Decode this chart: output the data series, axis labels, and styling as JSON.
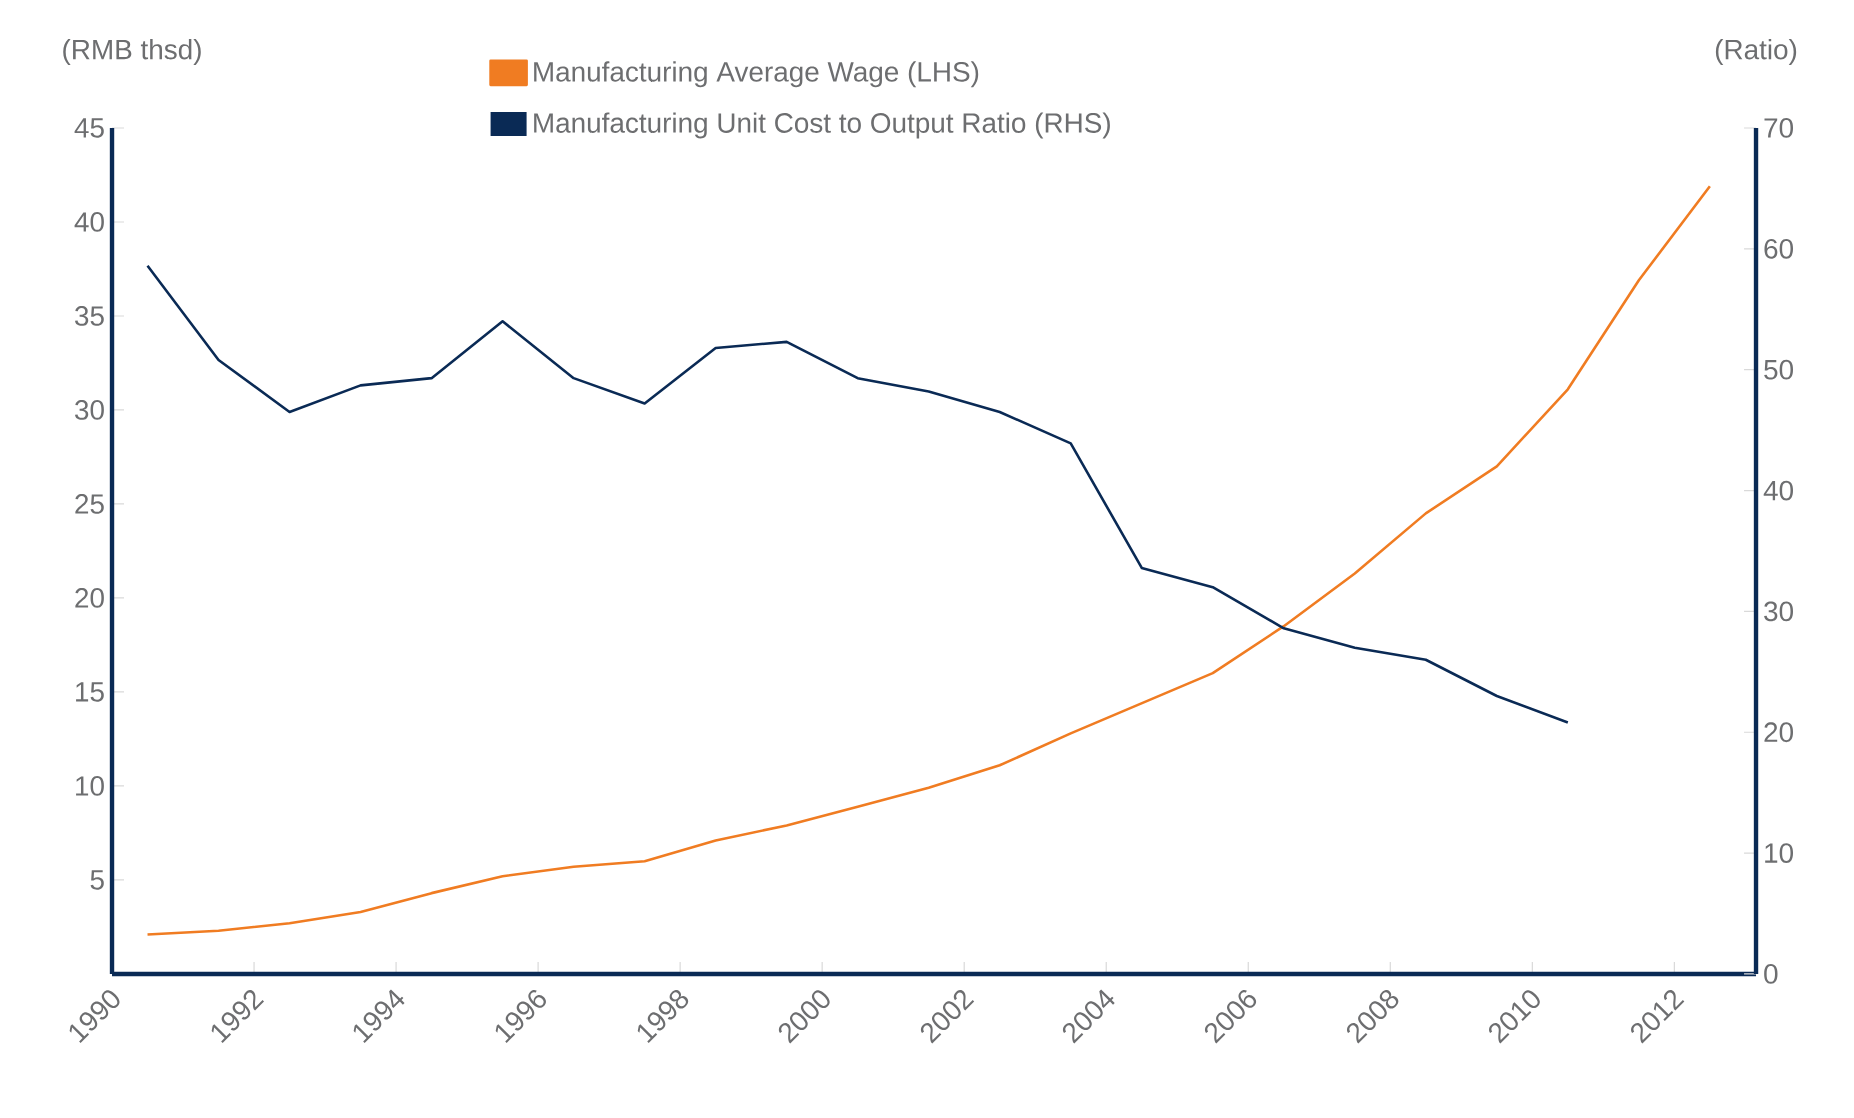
{
  "chart_data": {
    "type": "line",
    "ylabel": "(RMB thsd)",
    "y2label": "(Ratio)",
    "legend": "top",
    "x": [
      1990.5,
      1991.5,
      1992.5,
      1993.5,
      1994.5,
      1995.5,
      1996.5,
      1997.5,
      1998.5,
      1999.5,
      2000.5,
      2001.5,
      2002.5,
      2003.5,
      2004.5,
      2005.5,
      2006.5,
      2007.5,
      2008.5,
      2009.5,
      2010.5,
      2011.5,
      2012.5
    ],
    "xlim": [
      1990,
      2013.15
    ],
    "xticks": [
      1990,
      1992,
      1994,
      1996,
      1998,
      2000,
      2002,
      2004,
      2006,
      2008,
      2010,
      2012
    ],
    "ylim": [
      0,
      45
    ],
    "yticks": [
      5,
      10,
      15,
      20,
      25,
      30,
      35,
      40,
      45
    ],
    "y2lim": [
      0,
      70
    ],
    "y2ticks": [
      0,
      10,
      20,
      30,
      40,
      50,
      60,
      70
    ],
    "series": [
      {
        "name": "Manufacturing Average Wage (LHS)",
        "color": "#f07c22",
        "values": [
          2.1,
          2.3,
          2.7,
          3.3,
          4.3,
          5.2,
          5.7,
          6.0,
          7.1,
          7.9,
          8.9,
          9.9,
          11.1,
          12.8,
          14.4,
          16.0,
          18.5,
          21.3,
          24.5,
          27.0,
          31.1,
          36.9,
          41.9
        ]
      },
      {
        "name": "Manufacturing Unit Cost to Output Ratio (RHS)",
        "color": "#0a2a55",
        "axis": "y2",
        "values": [
          58.6,
          50.8,
          46.5,
          48.7,
          49.3,
          54.0,
          49.3,
          47.2,
          51.8,
          52.3,
          49.3,
          48.2,
          46.5,
          43.9,
          33.6,
          32.0,
          28.6,
          27.0,
          26.0,
          23.0,
          20.8,
          null,
          null
        ]
      }
    ]
  }
}
